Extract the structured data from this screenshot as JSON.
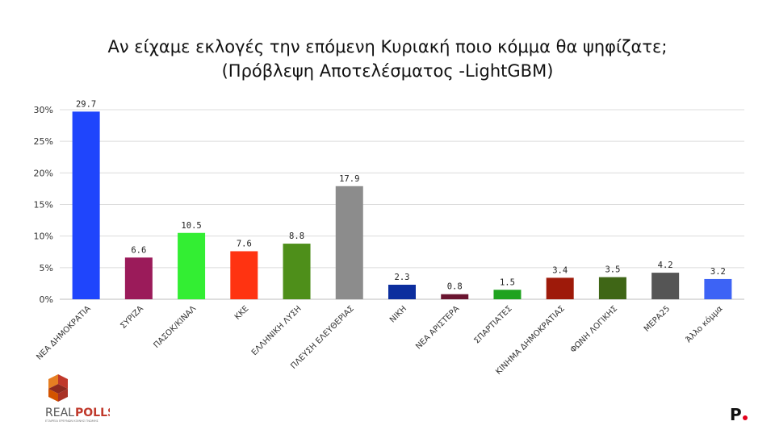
{
  "header": {
    "title_line1": "Αν είχαμε εκλογές την επόμενη Κυριακή ποιο κόμμα θα ψηφίζατε;",
    "title_line2": "(Πρόβλεψη Αποτελέσματος -LightGBM)"
  },
  "branding": {
    "left_logo_text_1": "REAL",
    "left_logo_text_2": "POLLS",
    "left_logo_tagline": "ΕΤΑΙΡΕΙΑ ΕΡΕΥΝΩΝ ΚΟΙΝΗΣ ΓΝΩΜΗΣ",
    "right_logo_text": "P",
    "right_logo_dot_color": "#e3001b"
  },
  "chart_data": {
    "type": "bar",
    "title": "Αν είχαμε εκλογές την επόμενη Κυριακή ποιο κόμμα θα ψηφίζατε; (Πρόβλεψη Αποτελέσματος -LightGBM)",
    "xlabel": "",
    "ylabel": "",
    "ylim": [
      0,
      30
    ],
    "yticks": [
      "0%",
      "5%",
      "10%",
      "15%",
      "20%",
      "25%",
      "30%"
    ],
    "grid": true,
    "categories": [
      "ΝΕΑ ΔΗΜΟΚΡΑΤΙΑ",
      "ΣΥΡΙΖΑ",
      "ΠΑΣΟΚ/ΚΙΝΑΛ",
      "ΚΚΕ",
      "ΕΛΛΗΝΙΚΗ ΛΥΣΗ",
      "ΠΛΕΥΣΗ ΕΛΕΥΘΕΡΙΑΣ",
      "ΝΙΚΗ",
      "ΝΕΑ ΑΡΙΣΤΕΡΑ",
      "ΣΠΑΡΤΙΑΤΕΣ",
      "ΚΙΝΗΜΑ ΔΗΜΟΚΡΑΤΙΑΣ",
      "ΦΩΝΗ ΛΟΓΙΚΗΣ",
      "ΜΕΡΑ25",
      "Άλλο κόμμα"
    ],
    "values": [
      29.7,
      6.6,
      10.5,
      7.6,
      8.8,
      17.9,
      2.3,
      0.8,
      1.5,
      3.4,
      3.5,
      4.2,
      3.2
    ],
    "value_labels": [
      "29.7",
      "6.6",
      "10.5",
      "7.6",
      "8.8",
      "17.9",
      "2.3",
      "0.8",
      "1.5",
      "3.4",
      "3.5",
      "4.2",
      "3.2"
    ],
    "colors": [
      "#1f45fc",
      "#9b1b5a",
      "#33ee33",
      "#ff3311",
      "#4e8f1a",
      "#8c8c8c",
      "#0c2e9e",
      "#6a1530",
      "#1fa31f",
      "#9e1a0a",
      "#3f6616",
      "#555555",
      "#3d63f5"
    ]
  }
}
